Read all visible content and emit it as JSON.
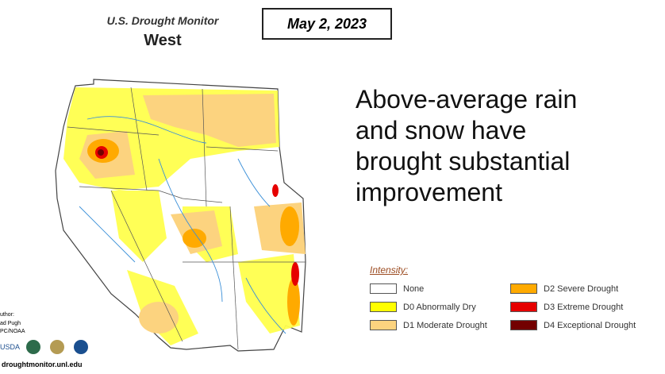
{
  "header": {
    "title": "U.S. Drought Monitor",
    "region": "West",
    "date": "May 2, 2023"
  },
  "headline": {
    "lines": [
      "Above-average rain",
      "and snow have",
      "brought substantial",
      "improvement"
    ]
  },
  "legend": {
    "title": "Intensity:",
    "items": [
      {
        "label": "None",
        "color": "#ffffff"
      },
      {
        "label": "D0 Abnormally Dry",
        "color": "#ffff00"
      },
      {
        "label": "D1 Moderate Drought",
        "color": "#fcd37f"
      },
      {
        "label": "D2 Severe Drought",
        "color": "#ffaa00"
      },
      {
        "label": "D3 Extreme Drought",
        "color": "#e60000"
      },
      {
        "label": "D4 Exceptional Drought",
        "color": "#730000"
      }
    ]
  },
  "credits": {
    "author_label": "uthor:",
    "author": "ad Pugh",
    "org": "PC/NOAA",
    "url": "droughtmonitor.unl.edu",
    "logo": "USDA"
  }
}
